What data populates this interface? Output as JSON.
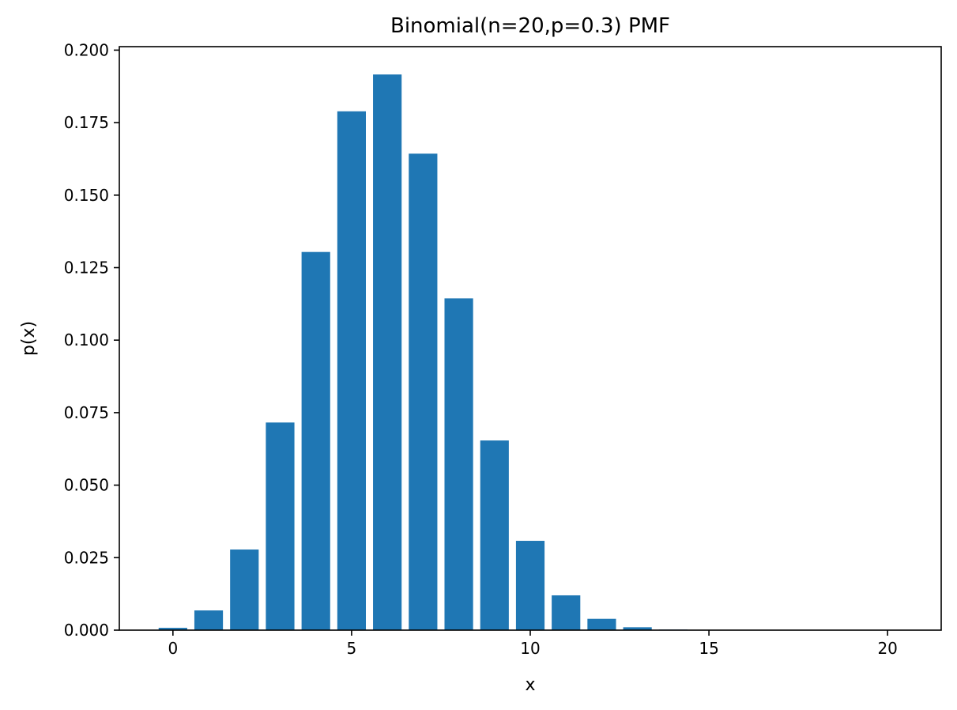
{
  "chart_data": {
    "type": "bar",
    "title": "Binomial(n=20,p=0.3) PMF",
    "xlabel": "x",
    "ylabel": "p(x)",
    "x": [
      0,
      1,
      2,
      3,
      4,
      5,
      6,
      7,
      8,
      9,
      10,
      11,
      12,
      13,
      14,
      15,
      16,
      17,
      18,
      19,
      20
    ],
    "values": [
      0.0008,
      0.0068,
      0.0278,
      0.0716,
      0.1304,
      0.1789,
      0.1916,
      0.1643,
      0.1144,
      0.0654,
      0.0308,
      0.012,
      0.0039,
      0.001,
      0.0002,
      0.0,
      0.0,
      0.0,
      0.0,
      0.0,
      0.0
    ],
    "xlim": [
      -1.5,
      21.5
    ],
    "ylim": [
      0,
      0.2012
    ],
    "xticks": [
      "0",
      "5",
      "10",
      "15",
      "20"
    ],
    "xtick_values": [
      0,
      5,
      10,
      15,
      20
    ],
    "yticks": [
      "0.000",
      "0.025",
      "0.050",
      "0.075",
      "0.100",
      "0.125",
      "0.150",
      "0.175",
      "0.200"
    ],
    "ytick_values": [
      0,
      0.025,
      0.05,
      0.075,
      0.1,
      0.125,
      0.15,
      0.175,
      0.2
    ],
    "bar_color": "#1f77b4",
    "grid": false,
    "legend": "none"
  }
}
